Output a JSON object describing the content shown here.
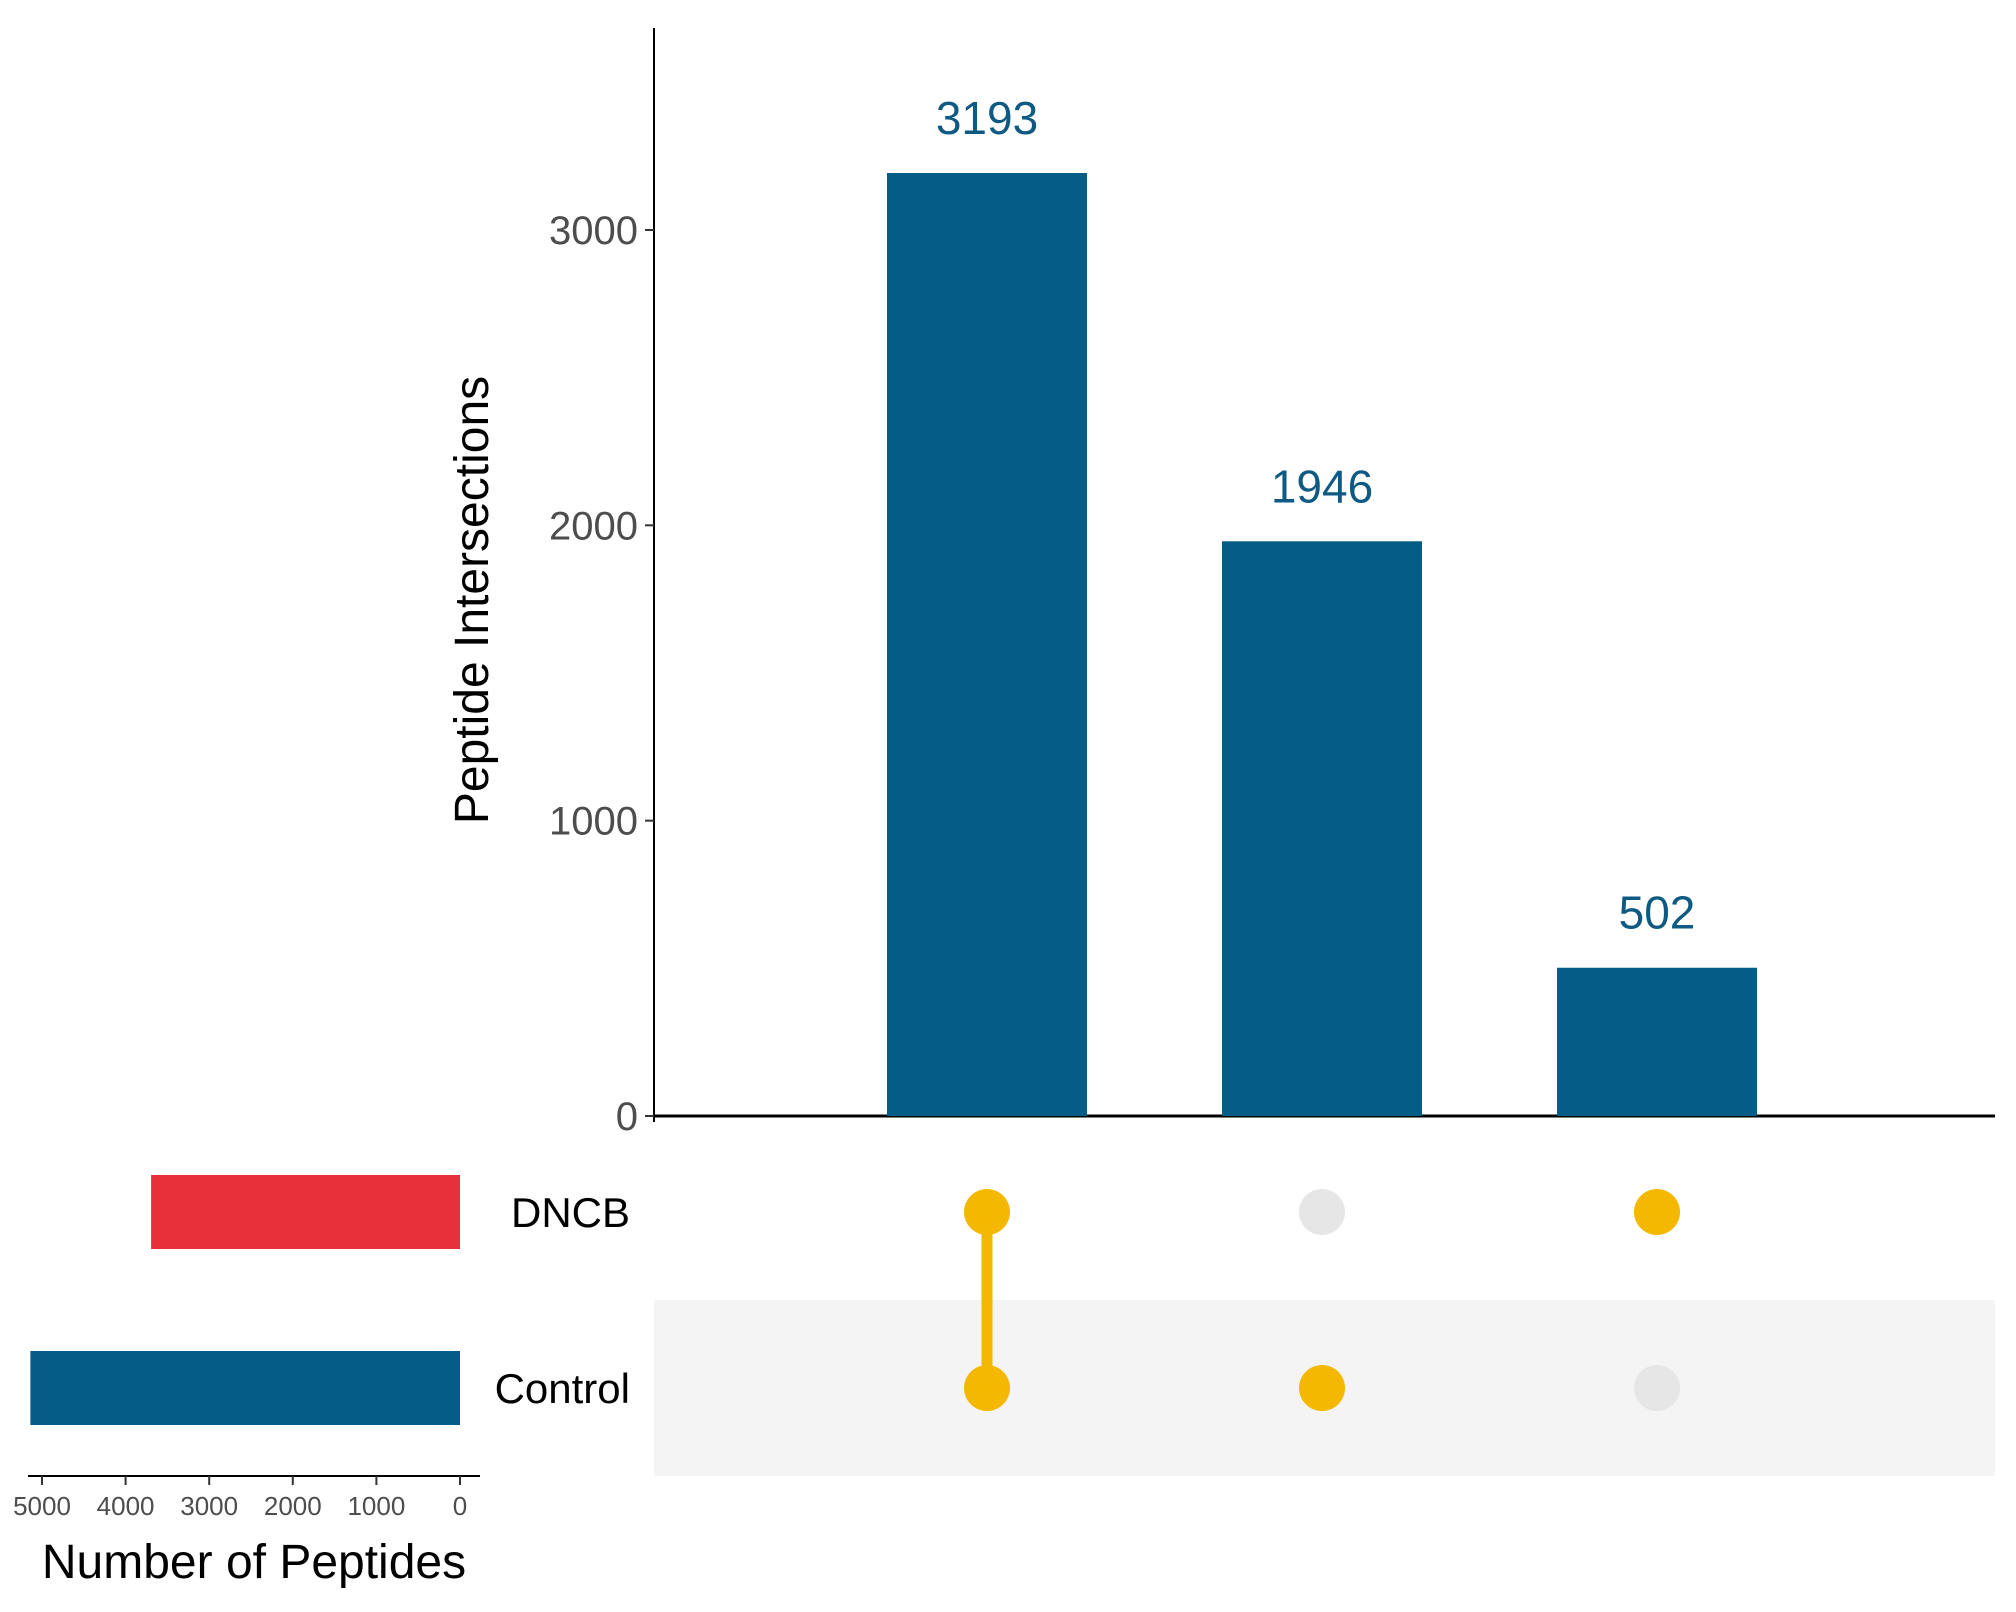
{
  "chart_data": {
    "type": "bar",
    "intersections": {
      "categories": [
        "DNCB & Control",
        "Control",
        "DNCB"
      ],
      "values": [
        3193,
        1946,
        502
      ],
      "ylabel": "Peptide Intersections",
      "ylim": [
        0,
        3600
      ],
      "yticks": [
        0,
        1000,
        2000,
        3000
      ],
      "bar_color": "#035d86",
      "label_color": "#0e5a83"
    },
    "set_sizes": {
      "sets": [
        "DNCB",
        "Control"
      ],
      "values": [
        3695,
        5139
      ],
      "colors": [
        "#e8303b",
        "#035d86"
      ],
      "xlabel": "Number of Peptides",
      "xlim": [
        5200,
        0
      ],
      "xticks": [
        5000,
        4000,
        3000,
        2000,
        1000,
        0
      ]
    },
    "matrix": {
      "active_color": "#f5b800",
      "inactive_color": "#e6e6e6",
      "stripe_color": "#f4f4f4",
      "membership": [
        [
          true,
          true
        ],
        [
          false,
          true
        ],
        [
          true,
          false
        ]
      ]
    }
  }
}
